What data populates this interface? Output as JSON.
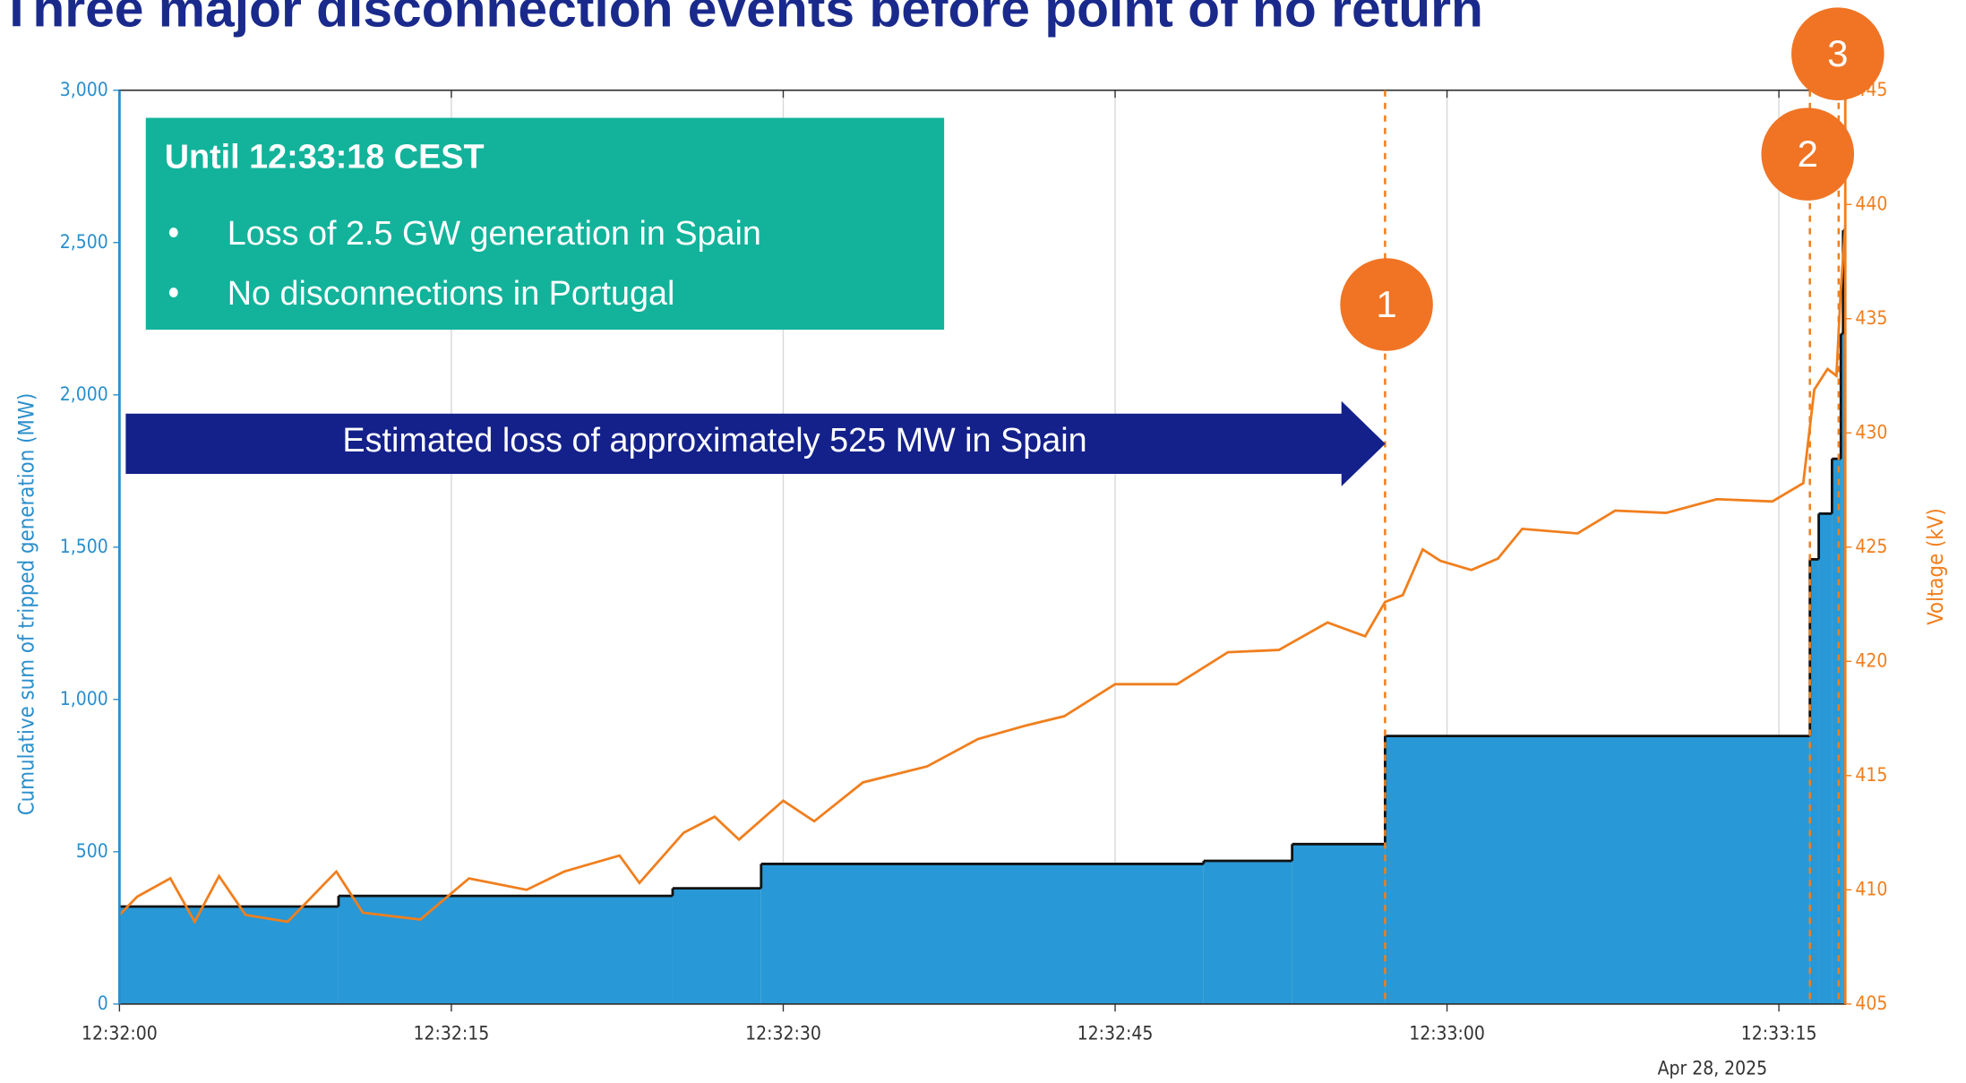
{
  "chart_data": {
    "type": "step-area-line",
    "title": "Three major disconnection events before point of no return",
    "ylabel": "Cumulative sum of tripped generation (MW)",
    "y2label": "Voltage (kV)",
    "date_label": "Apr 28, 2025",
    "infobox": {
      "heading": "Until 12:33:18 CEST",
      "bullets": [
        "Loss of 2.5 GW generation in Spain",
        "No disconnections in Portugal"
      ]
    },
    "arrow_text": "Estimated loss of approximately 525 MW in Spain",
    "xlim": [
      0,
      78
    ],
    "xticks": [
      {
        "value": 0,
        "label": "12:32:00"
      },
      {
        "value": 15,
        "label": "12:32:15"
      },
      {
        "value": 30,
        "label": "12:32:30"
      },
      {
        "value": 45,
        "label": "12:32:45"
      },
      {
        "value": 60,
        "label": "12:33:00"
      },
      {
        "value": 75,
        "label": "12:33:15"
      }
    ],
    "ylim": [
      0,
      3000
    ],
    "yticks": [
      0,
      500,
      {
        "value": 1000,
        "label": "1,000"
      },
      {
        "value": 1500,
        "label": "1,500"
      },
      {
        "value": 2000,
        "label": "2,000"
      },
      {
        "value": 2500,
        "label": "2,500"
      },
      {
        "value": 3000,
        "label": "3,000"
      }
    ],
    "y2lim": [
      405,
      445
    ],
    "y2ticks": [
      405,
      410,
      415,
      420,
      425,
      430,
      435,
      440,
      445
    ],
    "grid": true,
    "events": [
      {
        "label": "1",
        "x": 57.2
      },
      {
        "label": "2",
        "x": 76.4
      },
      {
        "label": "3",
        "x": 77.7
      }
    ],
    "series": [
      {
        "name": "Cumulative tripped generation",
        "color": "#2898d6",
        "kind": "step",
        "x": [
          0,
          9.9,
          25,
          29,
          49,
          53,
          57.2,
          76.4,
          76.8,
          77.4,
          77.8,
          77.9
        ],
        "values": [
          320,
          355,
          380,
          460,
          470,
          525,
          880,
          1460,
          1610,
          1790,
          2200,
          2540
        ]
      },
      {
        "name": "Voltage",
        "color": "#f07f1e",
        "kind": "line",
        "axis": "y2",
        "x": [
          0,
          0.8,
          2.3,
          3.4,
          4.5,
          5.7,
          7.6,
          9.8,
          11.0,
          13.6,
          15.8,
          18.4,
          20.1,
          22.6,
          23.5,
          25.5,
          26.9,
          28.0,
          30.0,
          31.4,
          33.6,
          36.5,
          38.8,
          41.0,
          42.7,
          45.0,
          47.8,
          50.1,
          52.4,
          54.6,
          56.3,
          57.2,
          58.0,
          58.9,
          59.7,
          61.1,
          62.3,
          63.4,
          65.9,
          67.6,
          69.9,
          72.2,
          74.7,
          76.1,
          76.6,
          77.2,
          77.6,
          77.8,
          78.0
        ],
        "values": [
          408.9,
          409.7,
          410.5,
          408.6,
          410.6,
          408.9,
          408.6,
          410.8,
          409.0,
          408.7,
          410.5,
          410.0,
          410.8,
          411.5,
          410.3,
          412.5,
          413.2,
          412.2,
          413.9,
          413.0,
          414.7,
          415.4,
          416.6,
          417.2,
          417.6,
          419.0,
          419.0,
          420.4,
          420.5,
          421.7,
          421.1,
          422.6,
          422.9,
          424.9,
          424.4,
          424.0,
          424.5,
          425.8,
          425.6,
          426.6,
          426.5,
          427.1,
          427.0,
          427.8,
          431.9,
          432.8,
          432.5,
          436.3,
          439.1
        ]
      }
    ]
  }
}
